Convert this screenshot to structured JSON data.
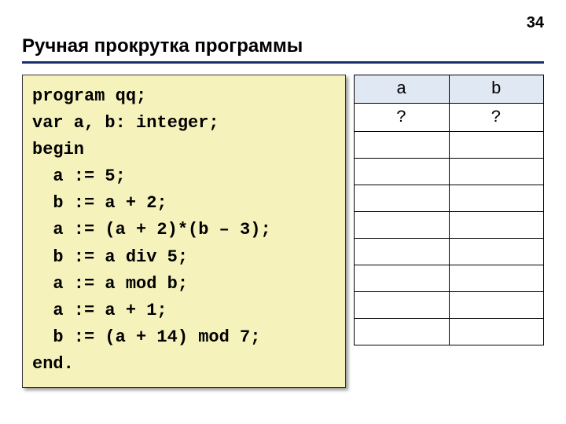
{
  "pageNumber": "34",
  "title": "Ручная прокрутка программы",
  "code": {
    "lines": [
      "program qq;",
      "var a, b: integer;",
      "begin",
      "  a := 5;",
      "  b := a + 2;",
      "  a := (a + 2)*(b – 3);",
      "  b := a div 5;",
      "  a := a mod b;",
      "  a := a + 1;",
      "  b := (a + 14) mod 7;",
      "end."
    ]
  },
  "table": {
    "headers": [
      "a",
      "b"
    ],
    "rows": [
      [
        "?",
        "?"
      ],
      [
        "",
        ""
      ],
      [
        "",
        ""
      ],
      [
        "",
        ""
      ],
      [
        "",
        ""
      ],
      [
        "",
        ""
      ],
      [
        "",
        ""
      ],
      [
        "",
        ""
      ],
      [
        "",
        ""
      ]
    ]
  },
  "colors": {
    "codeBackground": "#f6f2bc",
    "headerBackground": "#e0e8f4",
    "underline": "#1a2f6b",
    "border": "#000000",
    "text": "#000000"
  }
}
